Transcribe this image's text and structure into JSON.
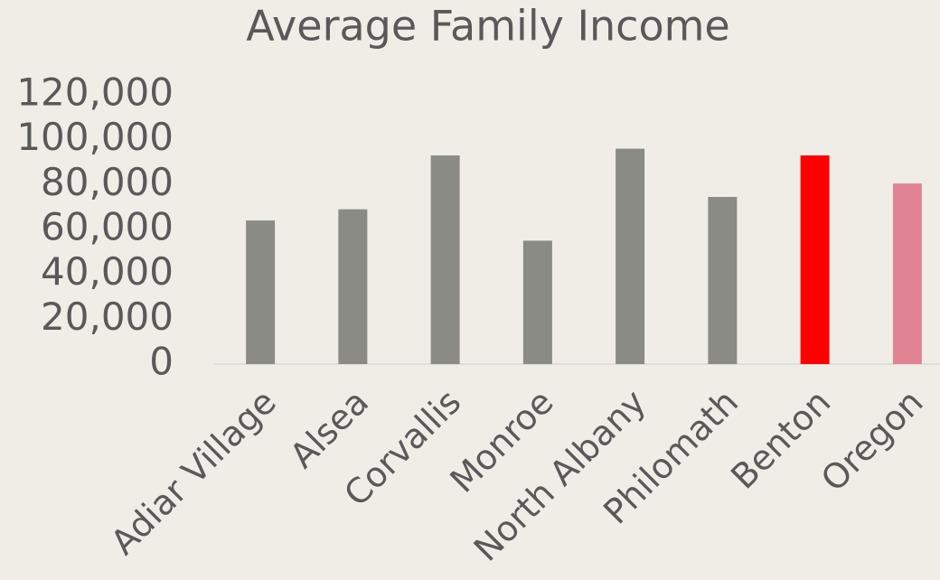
{
  "chart_data": {
    "type": "bar",
    "title": "Average Family Income",
    "categories": [
      "Adiar Village",
      "Alsea",
      "Corvallis",
      "Monroe",
      "North Albany",
      "Philomath",
      "Benton",
      "Oregon"
    ],
    "values": [
      64000,
      69000,
      93000,
      55000,
      96000,
      74500,
      93000,
      80500
    ],
    "colors": [
      "#8a8b85",
      "#8a8b85",
      "#8a8b85",
      "#8a8b85",
      "#8a8b85",
      "#8a8b85",
      "#ff0000",
      "#e08494"
    ],
    "ylim": [
      0,
      120000
    ],
    "yticks": [
      0,
      {
        "value": 20000,
        "label": "20,000"
      },
      {
        "value": 40000,
        "label": "40,000"
      },
      {
        "value": 60000,
        "label": "60,000"
      },
      {
        "value": 80000,
        "label": "80,000"
      },
      {
        "value": 100000,
        "label": "100,000"
      },
      {
        "value": 120000,
        "label": "120,000"
      }
    ],
    "grid": false
  }
}
